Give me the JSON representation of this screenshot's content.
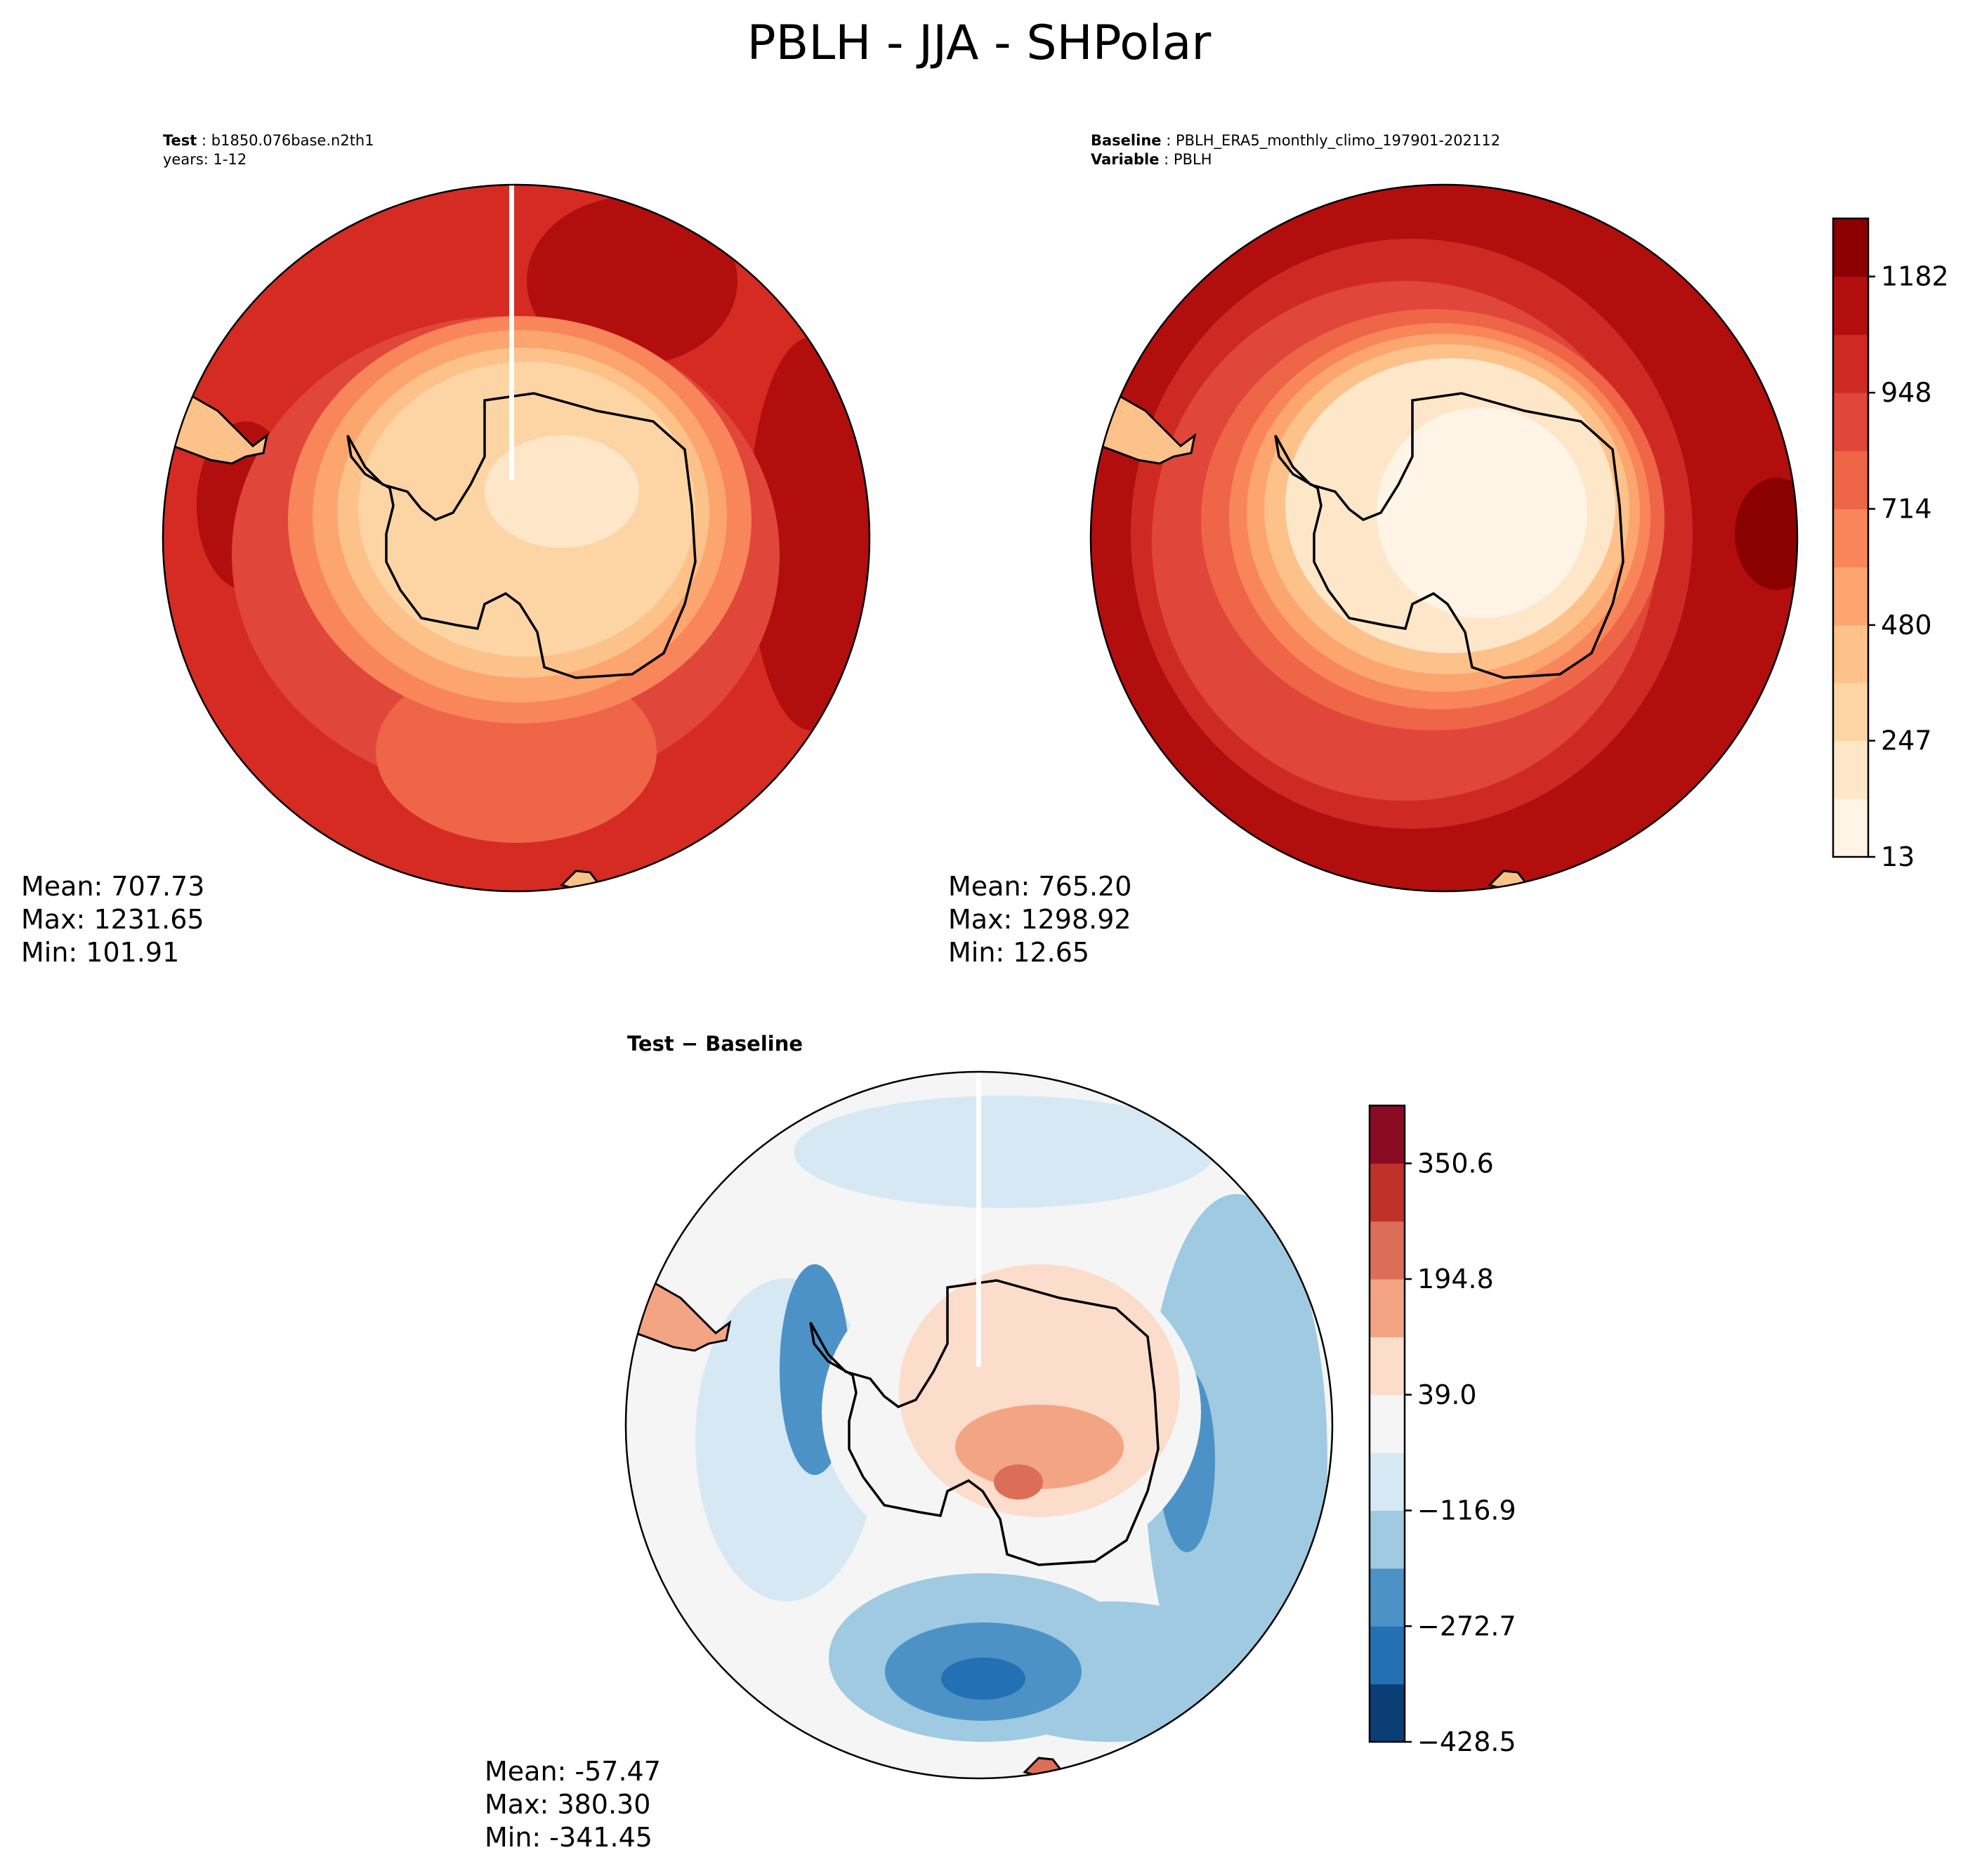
{
  "figure": {
    "title": "PBLH - JJA - SHPolar"
  },
  "panels": {
    "test": {
      "label_key": "Test",
      "label_value": "b1850.076base.n2th1",
      "line2": "years: 1-12",
      "stats": {
        "mean": "Mean: 707.73",
        "max": "Max: 1231.65",
        "min": "Min: 101.91"
      }
    },
    "baseline": {
      "label_key": "Baseline",
      "label_value": "PBLH_ERA5_monthly_climo_197901-202112",
      "line2_key": "Variable",
      "line2_value": "PBLH",
      "stats": {
        "mean": "Mean: 765.20",
        "max": "Max: 1298.92",
        "min": "Min: 12.65"
      }
    },
    "diff": {
      "title": "Test − Baseline",
      "stats": {
        "mean": "Mean: -57.47",
        "max": "Max: 380.30",
        "min": "Min: -341.45"
      }
    }
  },
  "chart_data": [
    {
      "type": "heatmap",
      "name": "test",
      "projection": "south-polar-stereographic",
      "variable": "PBLH",
      "mean": 707.73,
      "max": 1231.65,
      "min": 101.91,
      "colormap": "Reds (OrRd style)",
      "zones_by_distance_from_pole": [
        {
          "r": 0.0,
          "value": 180
        },
        {
          "r": 0.35,
          "value": 250
        },
        {
          "r": 0.45,
          "value": 400
        },
        {
          "r": 0.55,
          "value": 600
        },
        {
          "r": 0.65,
          "value": 800
        },
        {
          "r": 0.8,
          "value": 1000
        }
      ]
    },
    {
      "type": "heatmap",
      "name": "baseline",
      "projection": "south-polar-stereographic",
      "variable": "PBLH",
      "mean": 765.2,
      "max": 1298.92,
      "min": 12.65,
      "colorbar": {
        "levels": [
          13,
          130,
          247,
          364,
          480,
          597,
          714,
          831,
          948,
          1065,
          1182,
          1299
        ],
        "tick_labels": [
          "13",
          "247",
          "480",
          "714",
          "948",
          "1182"
        ],
        "tick_values": [
          13,
          247,
          480,
          714,
          948,
          1182
        ],
        "colors": [
          "#fff4e6",
          "#fee6c9",
          "#fdd5a5",
          "#fdc18a",
          "#fca56e",
          "#f9855b",
          "#ef6547",
          "#e0463a",
          "#ce2a23",
          "#b30e0e",
          "#8b0000"
        ]
      }
    },
    {
      "type": "heatmap",
      "name": "difference",
      "projection": "south-polar-stereographic",
      "variable": "PBLH",
      "mean": -57.47,
      "max": 380.3,
      "min": -341.45,
      "colorbar": {
        "levels": [
          -428.5,
          -350.6,
          -272.7,
          -194.8,
          -116.9,
          -39.0,
          39.0,
          116.9,
          194.8,
          272.7,
          350.6,
          428.5
        ],
        "tick_labels": [
          "350.6",
          "194.8",
          "39.0",
          "−116.9",
          "−272.7",
          "−428.5"
        ],
        "tick_values": [
          350.6,
          194.8,
          39.0,
          -116.9,
          -272.7,
          -428.5
        ],
        "colors": [
          "#0b3e75",
          "#2370b4",
          "#4c92c6",
          "#9fcae1",
          "#d6e8f3",
          "#f5f5f5",
          "#fcdccb",
          "#f2a483",
          "#dc6e58",
          "#c0312b",
          "#8a0c22"
        ]
      }
    }
  ]
}
